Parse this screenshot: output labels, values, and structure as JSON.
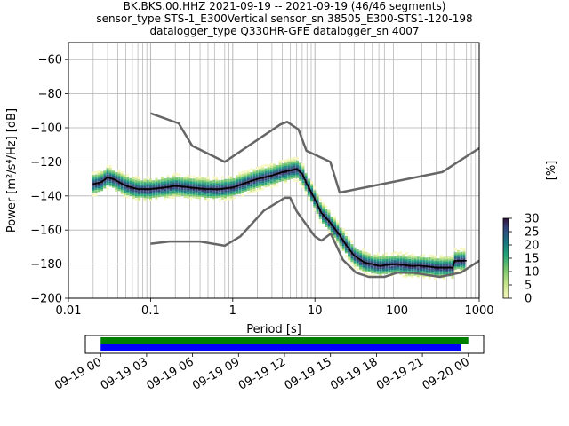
{
  "title": {
    "line1": "BK.BKS.00.HHZ   2021-09-19 -- 2021-09-19  (46/46 segments)",
    "line2": "sensor_type STS-1_E300Vertical sensor_sn 38505_E300-STS1-120-198",
    "line3": "datalogger_type Q330HR-GFE datalogger_sn 4007"
  },
  "chart_data": [
    {
      "type": "line",
      "xlabel": "Period [s]",
      "ylabel": "Power [m²/s⁴/Hz] [dB]",
      "xscale": "log",
      "xlim": [
        0.01,
        1000
      ],
      "ylim": [
        -200,
        -50
      ],
      "xticks": [
        0.01,
        0.1,
        1,
        10,
        100,
        1000
      ],
      "xtick_labels": [
        "0.01",
        "0.1",
        "1",
        "10",
        "100",
        "1000"
      ],
      "yticks": [
        -200,
        -180,
        -160,
        -140,
        -120,
        -100,
        -80,
        -60
      ],
      "ytick_labels": [
        "−200",
        "−180",
        "−160",
        "−140",
        "−120",
        "−100",
        "−80",
        "−60"
      ],
      "grid": true,
      "colors": {
        "noise_model": "#666666",
        "mean": "#000000",
        "max_pdf": "#30123b",
        "min_pdf": "#f7f7c0"
      },
      "series": [
        {
          "role": "high-noise-model",
          "x": [
            0.1,
            0.22,
            0.32,
            0.8,
            3.8,
            4.6,
            6.3,
            7.9,
            15.4,
            20,
            354.8,
            1000
          ],
          "y": [
            -91.5,
            -97.4,
            -110.5,
            -120,
            -98,
            -96.5,
            -101,
            -113.5,
            -120,
            -138,
            -126,
            -112
          ]
        },
        {
          "role": "low-noise-model",
          "x": [
            0.1,
            0.17,
            0.4,
            0.8,
            1.24,
            2.4,
            4.3,
            5.0,
            6.0,
            10,
            12,
            15.6,
            21.9,
            31.6,
            45,
            70,
            101,
            154,
            328,
            600,
            1000
          ],
          "y": [
            -168,
            -166.7,
            -166.7,
            -169.2,
            -163.7,
            -148.6,
            -141.1,
            -141.1,
            -149,
            -163.8,
            -166.2,
            -162.1,
            -177.5,
            -185,
            -187.5,
            -187.5,
            -185,
            -185,
            -187.5,
            -185,
            -178
          ]
        },
        {
          "role": "mean",
          "x": [
            0.02,
            0.025,
            0.03,
            0.035,
            0.05,
            0.07,
            0.1,
            0.15,
            0.2,
            0.3,
            0.5,
            0.7,
            1,
            1.5,
            2,
            3,
            4,
            5,
            6,
            7,
            8,
            10,
            12,
            15,
            20,
            25,
            30,
            40,
            60,
            100,
            150,
            200,
            300,
            400,
            480,
            500,
            700
          ],
          "y": [
            -133,
            -132,
            -129,
            -130,
            -134,
            -136,
            -136,
            -135,
            -134,
            -135,
            -136,
            -136,
            -135,
            -132,
            -130,
            -128,
            -126,
            -125,
            -124,
            -127,
            -133,
            -142,
            -150,
            -155,
            -163,
            -170,
            -175,
            -179,
            -181,
            -180,
            -181,
            -181,
            -182,
            -182,
            -182,
            -178,
            -178
          ]
        }
      ]
    },
    {
      "type": "heatmap",
      "role": "colorbar",
      "label": "[%]",
      "range": [
        0,
        30
      ],
      "ticks": [
        0,
        5,
        10,
        15,
        20,
        25,
        30
      ],
      "tick_labels": [
        "0",
        "5",
        "10",
        "15",
        "20",
        "25",
        "30"
      ]
    },
    {
      "type": "bar",
      "role": "data-coverage",
      "xlim_hours": [
        -1,
        25
      ],
      "ticks_hours": [
        0,
        3,
        6,
        9,
        12,
        15,
        18,
        21,
        24
      ],
      "tick_labels": [
        "09-19 00",
        "09-19 03",
        "09-19 06",
        "09-19 09",
        "09-19 12",
        "09-19 15",
        "09-19 18",
        "09-19 21",
        "09-20 00"
      ],
      "bars": [
        {
          "role": "used",
          "start": 0,
          "end": 24,
          "color": "#008000"
        },
        {
          "role": "available",
          "start": 0,
          "end": 23.5,
          "color": "#0000ff"
        }
      ]
    }
  ]
}
